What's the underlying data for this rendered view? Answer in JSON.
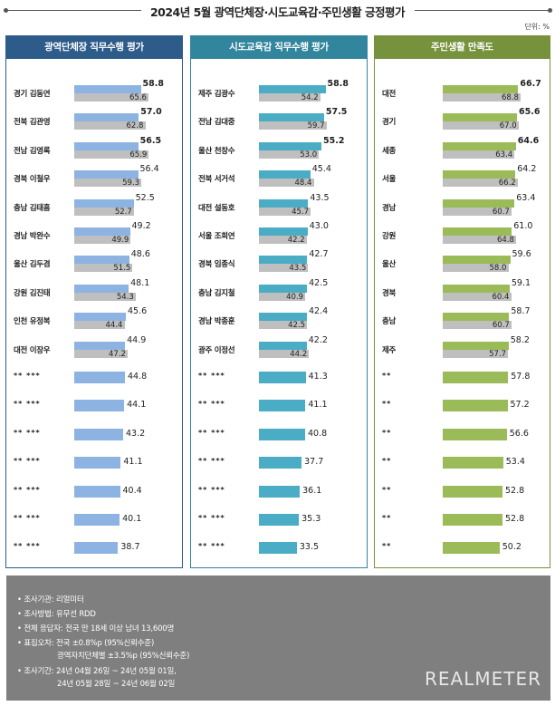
{
  "title": "2024년 5월 광역단체장·시도교육감·주민생활 긍정평가",
  "unit": "단위: %",
  "chart_data": [
    {
      "type": "bar",
      "title": "광역단체장 직무수행 평가",
      "color": "#8db3e2",
      "header_color": "#2e5c8a",
      "border_color": "#2e5c8a",
      "prev_color": "#bfbfbf",
      "categories": [
        "경기 김동연",
        "전북 김관영",
        "전남 김영록",
        "경북 이철우",
        "충남 김태흠",
        "경남 박완수",
        "울산 김두겸",
        "강원 김진태",
        "인천 유정복",
        "대전 이장우",
        "** ***",
        "** ***",
        "** ***",
        "** ***",
        "** ***",
        "** ***",
        "** ***"
      ],
      "current": [
        58.8,
        57.0,
        56.5,
        56.4,
        52.5,
        49.2,
        48.6,
        48.1,
        45.6,
        44.9,
        44.8,
        44.1,
        43.2,
        41.1,
        40.4,
        40.1,
        38.7
      ],
      "previous": [
        65.6,
        62.8,
        65.9,
        59.3,
        52.7,
        49.9,
        51.5,
        54.3,
        44.4,
        47.2,
        null,
        null,
        null,
        null,
        null,
        null,
        null
      ],
      "bold": [
        true,
        true,
        true,
        false,
        false,
        false,
        false,
        false,
        false,
        false,
        false,
        false,
        false,
        false,
        false,
        false,
        false
      ]
    },
    {
      "type": "bar",
      "title": "시도교육감 직무수행 평가",
      "color": "#4bacc6",
      "header_color": "#31859c",
      "border_color": "#31859c",
      "prev_color": "#bfbfbf",
      "categories": [
        "제주 김광수",
        "전남 김대중",
        "울산 천창수",
        "전북 서거석",
        "대전 설동호",
        "서울 조희연",
        "경북 임종식",
        "충남 김지철",
        "경남 박종훈",
        "광주 이정선",
        "** ***",
        "** ***",
        "** ***",
        "** ***",
        "** ***",
        "** ***",
        "** ***"
      ],
      "current": [
        58.8,
        57.5,
        55.2,
        45.4,
        43.5,
        43.0,
        42.7,
        42.5,
        42.4,
        42.2,
        41.3,
        41.1,
        40.8,
        37.7,
        36.1,
        35.3,
        33.5
      ],
      "previous": [
        54.2,
        59.7,
        53.0,
        48.4,
        45.7,
        42.2,
        43.5,
        40.9,
        42.5,
        44.2,
        null,
        null,
        null,
        null,
        null,
        null,
        null
      ],
      "bold": [
        true,
        true,
        true,
        false,
        false,
        false,
        false,
        false,
        false,
        false,
        false,
        false,
        false,
        false,
        false,
        false,
        false
      ]
    },
    {
      "type": "bar",
      "title": "주민생활 만족도",
      "color": "#9bbb59",
      "header_color": "#76923c",
      "border_color": "#76923c",
      "prev_color": "#bfbfbf",
      "categories": [
        "대전",
        "경기",
        "세종",
        "서울",
        "경남",
        "강원",
        "울산",
        "경북",
        "충남",
        "제주",
        "**",
        "**",
        "**",
        "**",
        "**",
        "**",
        "**"
      ],
      "current": [
        66.7,
        65.6,
        64.6,
        64.2,
        63.4,
        61.0,
        59.6,
        59.1,
        58.7,
        58.2,
        57.8,
        57.2,
        56.6,
        53.4,
        52.8,
        52.8,
        50.2
      ],
      "previous": [
        68.8,
        67.0,
        63.4,
        66.2,
        60.7,
        64.8,
        58.0,
        60.4,
        60.7,
        57.7,
        null,
        null,
        null,
        null,
        null,
        null,
        null
      ],
      "bold": [
        true,
        true,
        true,
        false,
        false,
        false,
        false,
        false,
        false,
        false,
        false,
        false,
        false,
        false,
        false,
        false,
        false
      ]
    }
  ],
  "notes": [
    "• 조사기관: 리얼미터",
    "• 조사방법: 유무선 RDD",
    "• 전체 응답자: 전국 만 18세 이상 남녀 13,600명",
    "• 표집오차: 전국 ±0.8%p (95%신뢰수준)",
    "광역자치단체별 ±3.5%p (95%신뢰수준)",
    "• 조사기간: 24년 04월 26일 ~ 24년 05월 01일,",
    "24년 05월 28일 ~ 24년 06월 02일"
  ],
  "brand": "REALMETER"
}
